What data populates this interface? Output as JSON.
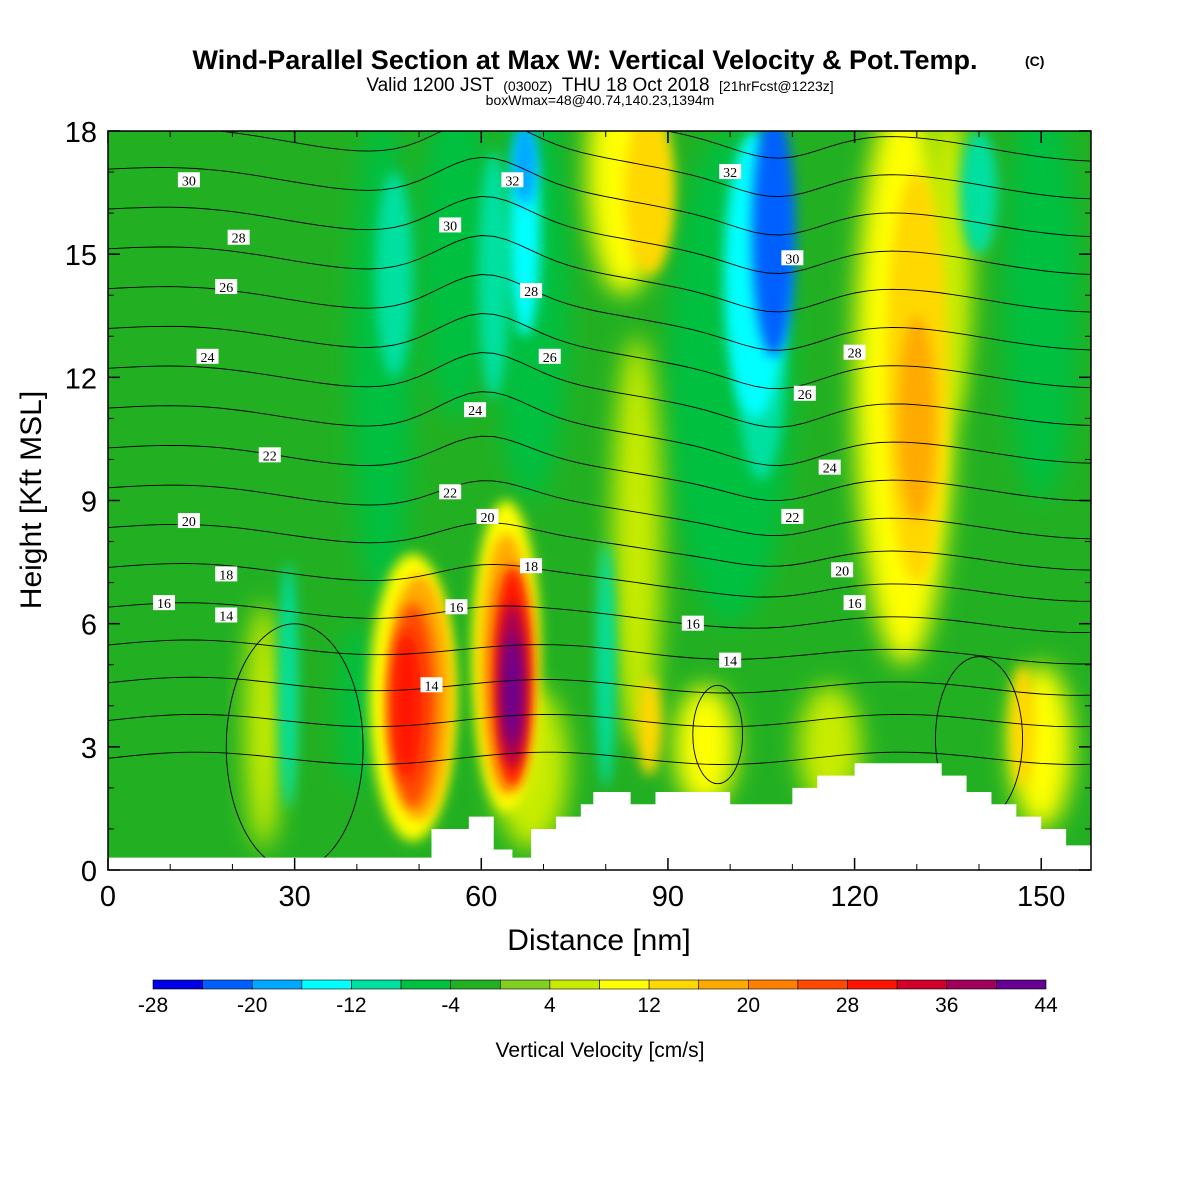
{
  "chart_data": {
    "type": "heatmap",
    "title": {
      "main": "Wind-Parallel Section at Max W: Vertical Velocity & Pot.Temp.",
      "main_tag": "(C)",
      "valid_pre": "Valid 1200 JST",
      "valid_z": "(0300Z)",
      "valid_post": "THU 18 Oct 2018",
      "valid_fcst": "[21hrFcst@1223z]",
      "box": "boxWmax=48@40.74,140.23,1394m"
    },
    "xlabel": "Distance [nm]",
    "ylabel": "Height [Kft MSL]",
    "xlim": [
      0,
      158
    ],
    "ylim": [
      0,
      18
    ],
    "x_ticks": [
      0,
      30,
      60,
      90,
      120,
      150
    ],
    "y_ticks": [
      0,
      3,
      6,
      9,
      12,
      15,
      18
    ],
    "colorbar": {
      "label": "Vertical Velocity [cm/s]",
      "levels": [
        -28,
        -24,
        -20,
        -16,
        -12,
        -8,
        -4,
        0,
        4,
        8,
        12,
        16,
        20,
        24,
        28,
        32,
        36,
        40,
        44
      ],
      "tick_labels": [
        "-28",
        "-20",
        "-12",
        "-4",
        "4",
        "12",
        "20",
        "28",
        "36",
        "44"
      ],
      "colors": [
        "#0000e6",
        "#0060ff",
        "#00a8ff",
        "#00ffff",
        "#00e0a0",
        "#00c040",
        "#22b022",
        "#80d020",
        "#c8ec00",
        "#ffff00",
        "#ffd800",
        "#ffaa00",
        "#ff7f00",
        "#ff4800",
        "#ff1400",
        "#d0002a",
        "#a0005a",
        "#660092"
      ]
    },
    "theta_contours": {
      "interval": 1,
      "labeled_values": [
        14,
        16,
        18,
        20,
        22,
        24,
        26,
        28,
        30,
        32
      ]
    },
    "terrain_profile": {
      "x": [
        0,
        48,
        52,
        58,
        62,
        65,
        68,
        72,
        76,
        78,
        84,
        88,
        98,
        100,
        110,
        114,
        120,
        127,
        134,
        138,
        142,
        146,
        150,
        154,
        158
      ],
      "y": [
        0.3,
        0.3,
        1.0,
        1.3,
        0.5,
        0.3,
        1.0,
        1.3,
        1.6,
        1.9,
        1.6,
        1.9,
        1.9,
        1.6,
        2.0,
        2.3,
        2.6,
        2.6,
        2.3,
        1.9,
        1.6,
        1.3,
        1.0,
        0.6,
        0.6
      ]
    },
    "w_features": [
      {
        "x": 48,
        "z": 4.0,
        "w": 28
      },
      {
        "x": 65,
        "z": 4.5,
        "w": 44
      },
      {
        "x": 108,
        "z": 15.5,
        "w": -24
      },
      {
        "x": 67,
        "z": 17.0,
        "w": -20
      },
      {
        "x": 130,
        "z": 11.0,
        "w": 16
      },
      {
        "x": 88,
        "z": 17.0,
        "w": 16
      },
      {
        "x": 28,
        "z": 4.5,
        "w": -16
      }
    ],
    "series": []
  }
}
